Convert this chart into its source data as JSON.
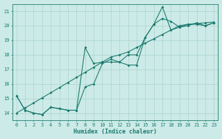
{
  "xlabel": "Humidex (Indice chaleur)",
  "ylabel": "",
  "xlim": [
    -0.5,
    23.5
  ],
  "ylim": [
    13.5,
    21.5
  ],
  "yticks": [
    14,
    15,
    16,
    17,
    18,
    19,
    20,
    21
  ],
  "xticks": [
    0,
    1,
    2,
    3,
    4,
    5,
    6,
    7,
    8,
    9,
    10,
    11,
    12,
    13,
    14,
    15,
    16,
    17,
    18,
    19,
    20,
    21,
    22,
    23
  ],
  "bg_color": "#cceae7",
  "grid_color": "#aad4d0",
  "line_color": "#1a7a6e",
  "lines": [
    {
      "x": [
        0,
        1,
        2,
        3,
        4,
        5,
        6,
        7,
        8,
        9,
        10,
        11,
        12,
        13,
        14,
        15,
        16,
        17,
        18,
        19,
        20,
        21,
        22,
        23
      ],
      "y": [
        15.2,
        14.2,
        14.0,
        13.9,
        14.4,
        14.3,
        14.2,
        14.2,
        18.5,
        17.4,
        17.5,
        17.5,
        17.5,
        17.3,
        17.3,
        19.2,
        20.1,
        21.3,
        19.7,
        20.0,
        20.1,
        20.1,
        20.0,
        20.2
      ]
    },
    {
      "x": [
        0,
        1,
        2,
        3,
        4,
        5,
        6,
        7,
        8,
        9,
        10,
        11,
        12,
        13,
        14,
        15,
        16,
        17,
        18,
        19,
        20,
        21,
        22,
        23
      ],
      "y": [
        15.2,
        14.2,
        14.0,
        13.9,
        14.4,
        14.3,
        14.2,
        14.2,
        15.8,
        16.0,
        17.4,
        17.7,
        17.5,
        18.0,
        18.0,
        19.2,
        20.1,
        20.5,
        20.3,
        19.9,
        20.0,
        20.2,
        20.0,
        20.2
      ]
    },
    {
      "x": [
        0,
        1,
        2,
        3,
        4,
        5,
        6,
        7,
        8,
        9,
        10,
        11,
        12,
        13,
        14,
        15,
        16,
        17,
        18,
        19,
        20,
        21,
        22,
        23
      ],
      "y": [
        14.0,
        14.35,
        14.7,
        15.05,
        15.4,
        15.75,
        16.1,
        16.45,
        16.8,
        17.15,
        17.5,
        17.85,
        18.0,
        18.2,
        18.5,
        18.8,
        19.1,
        19.4,
        19.7,
        19.9,
        20.1,
        20.15,
        20.2,
        20.25
      ]
    }
  ]
}
